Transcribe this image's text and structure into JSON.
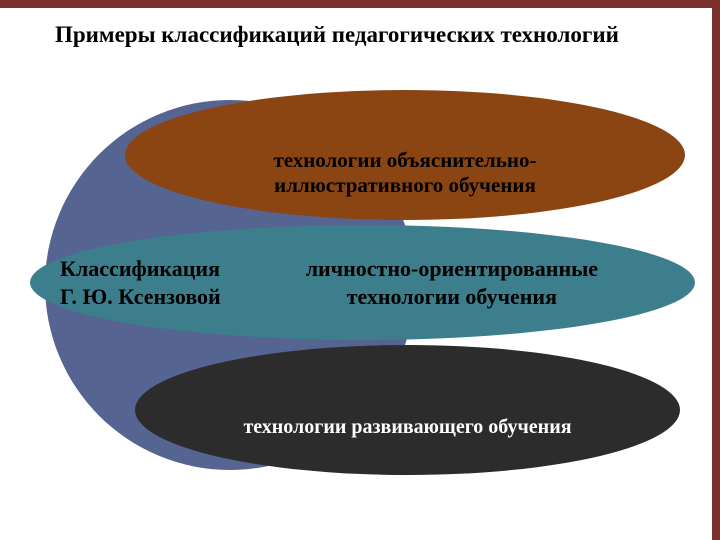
{
  "title": "Примеры классификаций педагогических технологий",
  "circle": {
    "color": "#556491"
  },
  "ovals": {
    "one": {
      "text": "технологии объяснительно-\nиллюстративного обучения",
      "bg": "#8a4513",
      "fontsize": 21
    },
    "two": {
      "label_line1": "Классификация",
      "label_line2": "Г. Ю. Ксензовой",
      "main_line1": "личностно-ориентированные",
      "main_line2": "технологии обучения",
      "bg": "#3c7e8c",
      "fontsize": 22
    },
    "three": {
      "text": "технологии развивающего обучения",
      "bg": "#2c2c2c",
      "fontsize": 20
    }
  },
  "border_color": "#7a2e2e",
  "background_color": "#ffffff"
}
